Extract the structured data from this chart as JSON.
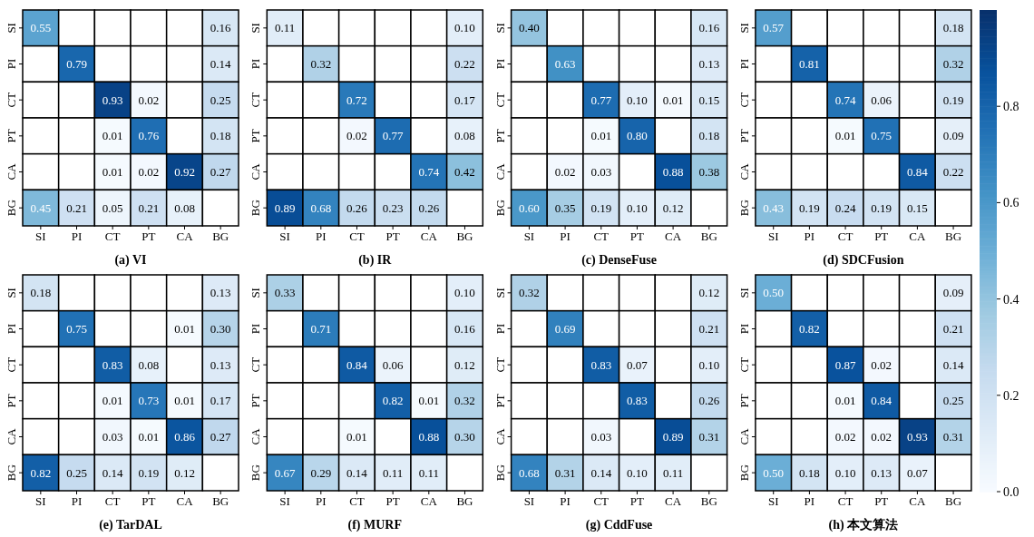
{
  "chart_data": [
    {
      "type": "heatmap",
      "title": "(a) VI",
      "categories": [
        "SI",
        "PI",
        "CT",
        "PT",
        "CA",
        "BG"
      ],
      "y_categories": [
        "SI",
        "PI",
        "CT",
        "PT",
        "CA",
        "BG"
      ],
      "clim": [
        0,
        1
      ],
      "cticks": [
        {
          "value": 0,
          "label": "0.0"
        },
        0.2,
        0.4,
        0.6,
        0.8
      ],
      "cells": [
        [
          0.55,
          null,
          null,
          null,
          null,
          0.16
        ],
        [
          null,
          0.79,
          null,
          null,
          null,
          0.14
        ],
        [
          null,
          null,
          0.93,
          0.02,
          null,
          0.25
        ],
        [
          null,
          null,
          0.01,
          0.76,
          null,
          0.18
        ],
        [
          null,
          null,
          0.01,
          0.02,
          0.92,
          0.27
        ],
        [
          0.45,
          0.21,
          0.05,
          0.21,
          0.08,
          null
        ]
      ],
      "cell_labels": [
        [
          "0.55",
          null,
          null,
          null,
          null,
          "0.16"
        ],
        [
          null,
          "0.79",
          null,
          null,
          null,
          "0.14"
        ],
        [
          null,
          null,
          "0.93",
          "0.02",
          null,
          "0.25"
        ],
        [
          null,
          null,
          "0.01",
          "0.76",
          null,
          "0.18"
        ],
        [
          null,
          null,
          "0.01",
          "0.02",
          "0.92",
          "0.27"
        ],
        [
          "0.45",
          "0.21",
          "0.05",
          "0.21",
          "0.08",
          null
        ]
      ]
    },
    {
      "type": "heatmap",
      "title": "(b) IR",
      "categories": [
        "SI",
        "PI",
        "CT",
        "PT",
        "CA",
        "BG"
      ],
      "y_categories": [
        "SI",
        "PI",
        "CT",
        "PT",
        "CA",
        "BG"
      ],
      "cells": [
        [
          0.11,
          null,
          null,
          null,
          null,
          0.1
        ],
        [
          null,
          0.32,
          null,
          null,
          null,
          0.22
        ],
        [
          null,
          null,
          0.72,
          null,
          null,
          0.17
        ],
        [
          null,
          null,
          0.02,
          0.77,
          null,
          0.08
        ],
        [
          null,
          null,
          null,
          null,
          0.74,
          0.42
        ],
        [
          0.89,
          0.68,
          0.26,
          0.23,
          0.26,
          null
        ]
      ],
      "cell_labels": [
        [
          "0.11",
          null,
          null,
          null,
          null,
          "0.10"
        ],
        [
          null,
          "0.32",
          null,
          null,
          null,
          "0.22"
        ],
        [
          null,
          null,
          "0.72",
          null,
          null,
          "0.17"
        ],
        [
          null,
          null,
          "0.02",
          "0.77",
          null,
          "0.08"
        ],
        [
          null,
          null,
          null,
          null,
          "0.74",
          "0.42"
        ],
        [
          "0.89",
          "0.68",
          "0.26",
          "0.23",
          "0.26",
          null
        ]
      ]
    },
    {
      "type": "heatmap",
      "title": "(c) DenseFuse",
      "categories": [
        "SI",
        "PI",
        "CT",
        "PT",
        "CA",
        "BG"
      ],
      "y_categories": [
        "SI",
        "PI",
        "CT",
        "PT",
        "CA",
        "BG"
      ],
      "cells": [
        [
          0.4,
          null,
          null,
          null,
          null,
          0.16
        ],
        [
          null,
          0.63,
          null,
          null,
          null,
          0.13
        ],
        [
          null,
          null,
          0.77,
          0.1,
          0.01,
          0.15
        ],
        [
          null,
          null,
          0.01,
          0.8,
          null,
          0.18
        ],
        [
          null,
          0.02,
          0.03,
          null,
          0.88,
          0.38
        ],
        [
          0.6,
          0.35,
          0.19,
          0.1,
          0.12,
          null
        ]
      ],
      "cell_labels": [
        [
          "0.40",
          null,
          null,
          null,
          null,
          "0.16"
        ],
        [
          null,
          "0.63",
          null,
          null,
          null,
          "0.13"
        ],
        [
          null,
          null,
          "0.77",
          "0.10",
          "0.01",
          "0.15"
        ],
        [
          null,
          null,
          "0.01",
          "0.80",
          null,
          "0.18"
        ],
        [
          null,
          "0.02",
          "0.03",
          null,
          "0.88",
          "0.38"
        ],
        [
          "0.60",
          "0.35",
          "0.19",
          "0.10",
          "0.12",
          null
        ]
      ]
    },
    {
      "type": "heatmap",
      "title": "(d) SDCFusion",
      "categories": [
        "SI",
        "PI",
        "CT",
        "PT",
        "CA",
        "BG"
      ],
      "y_categories": [
        "SI",
        "PI",
        "CT",
        "PT",
        "CA",
        "BG"
      ],
      "cells": [
        [
          0.57,
          null,
          null,
          null,
          null,
          0.18
        ],
        [
          null,
          0.81,
          null,
          null,
          null,
          0.32
        ],
        [
          null,
          null,
          0.74,
          0.06,
          null,
          0.19
        ],
        [
          null,
          null,
          0.01,
          0.75,
          null,
          0.09
        ],
        [
          null,
          null,
          null,
          null,
          0.84,
          0.22
        ],
        [
          0.43,
          0.19,
          0.24,
          0.19,
          0.15,
          null
        ]
      ],
      "cell_labels": [
        [
          "0.57",
          null,
          null,
          null,
          null,
          "0.18"
        ],
        [
          null,
          "0.81",
          null,
          null,
          null,
          "0.32"
        ],
        [
          null,
          null,
          "0.74",
          "0.06",
          null,
          "0.19"
        ],
        [
          null,
          null,
          "0.01",
          "0.75",
          null,
          "0.09"
        ],
        [
          null,
          null,
          null,
          null,
          "0.84",
          "0.22"
        ],
        [
          "0.43",
          "0.19",
          "0.24",
          "0.19",
          "0.15",
          null
        ]
      ]
    },
    {
      "type": "heatmap",
      "title": "(e) TarDAL",
      "categories": [
        "SI",
        "PI",
        "CT",
        "PT",
        "CA",
        "BG"
      ],
      "y_categories": [
        "SI",
        "PI",
        "CT",
        "PT",
        "CA",
        "BG"
      ],
      "cells": [
        [
          0.18,
          null,
          null,
          null,
          null,
          0.13
        ],
        [
          null,
          0.75,
          null,
          null,
          0.01,
          0.3
        ],
        [
          null,
          null,
          0.83,
          0.08,
          null,
          0.13
        ],
        [
          null,
          null,
          0.01,
          0.73,
          0.01,
          0.17
        ],
        [
          null,
          null,
          0.03,
          0.01,
          0.86,
          0.27
        ],
        [
          0.82,
          0.25,
          0.14,
          0.19,
          0.12,
          null
        ]
      ],
      "cell_labels": [
        [
          "0.18",
          null,
          null,
          null,
          null,
          "0.13"
        ],
        [
          null,
          "0.75",
          null,
          null,
          "0.01",
          "0.30"
        ],
        [
          null,
          null,
          "0.83",
          "0.08",
          null,
          "0.13"
        ],
        [
          null,
          null,
          "0.01",
          "0.73",
          "0.01",
          "0.17"
        ],
        [
          null,
          null,
          "0.03",
          "0.01",
          "0.86",
          "0.27"
        ],
        [
          "0.82",
          "0.25",
          "0.14",
          "0.19",
          "0.12",
          null
        ]
      ]
    },
    {
      "type": "heatmap",
      "title": "(f) MURF",
      "categories": [
        "SI",
        "PI",
        "CT",
        "PT",
        "CA",
        "BG"
      ],
      "y_categories": [
        "SI",
        "PI",
        "CT",
        "PT",
        "CA",
        "BG"
      ],
      "cells": [
        [
          0.33,
          null,
          null,
          null,
          null,
          0.1
        ],
        [
          null,
          0.71,
          null,
          null,
          null,
          0.16
        ],
        [
          null,
          null,
          0.84,
          0.06,
          null,
          0.12
        ],
        [
          null,
          null,
          null,
          0.82,
          0.01,
          0.32
        ],
        [
          null,
          null,
          0.01,
          null,
          0.88,
          0.3
        ],
        [
          0.67,
          0.29,
          0.14,
          0.11,
          0.11,
          null
        ]
      ],
      "cell_labels": [
        [
          "0.33",
          null,
          null,
          null,
          null,
          "0.10"
        ],
        [
          null,
          "0.71",
          null,
          null,
          null,
          "0.16"
        ],
        [
          null,
          null,
          "0.84",
          "0.06",
          null,
          "0.12"
        ],
        [
          null,
          null,
          null,
          "0.82",
          "0.01",
          "0.32"
        ],
        [
          null,
          null,
          "0.01",
          null,
          "0.88",
          "0.30"
        ],
        [
          "0.67",
          "0.29",
          "0.14",
          "0.11",
          "0.11",
          null
        ]
      ]
    },
    {
      "type": "heatmap",
      "title": "(g) CddFuse",
      "categories": [
        "SI",
        "PI",
        "CT",
        "PT",
        "CA",
        "BG"
      ],
      "y_categories": [
        "SI",
        "PI",
        "CT",
        "PT",
        "CA",
        "BG"
      ],
      "cells": [
        [
          0.32,
          null,
          null,
          null,
          null,
          0.12
        ],
        [
          null,
          0.69,
          null,
          null,
          null,
          0.21
        ],
        [
          null,
          null,
          0.83,
          0.07,
          null,
          0.1
        ],
        [
          null,
          null,
          null,
          0.83,
          null,
          0.26
        ],
        [
          null,
          null,
          0.03,
          null,
          0.89,
          0.31
        ],
        [
          0.68,
          0.31,
          0.14,
          0.1,
          0.11,
          null
        ]
      ],
      "cell_labels": [
        [
          "0.32",
          null,
          null,
          null,
          null,
          "0.12"
        ],
        [
          null,
          "0.69",
          null,
          null,
          null,
          "0.21"
        ],
        [
          null,
          null,
          "0.83",
          "0.07",
          null,
          "0.10"
        ],
        [
          null,
          null,
          null,
          "0.83",
          null,
          "0.26"
        ],
        [
          null,
          null,
          "0.03",
          null,
          "0.89",
          "0.31"
        ],
        [
          "0.68",
          "0.31",
          "0.14",
          "0.10",
          "0.11",
          null
        ]
      ]
    },
    {
      "type": "heatmap",
      "title": "(h) 本文算法",
      "categories": [
        "SI",
        "PI",
        "CT",
        "PT",
        "CA",
        "BG"
      ],
      "y_categories": [
        "SI",
        "PI",
        "CT",
        "PT",
        "CA",
        "BG"
      ],
      "cells": [
        [
          0.5,
          null,
          null,
          null,
          null,
          0.09
        ],
        [
          null,
          0.82,
          null,
          null,
          null,
          0.21
        ],
        [
          null,
          null,
          0.87,
          0.02,
          null,
          0.14
        ],
        [
          null,
          null,
          0.01,
          0.84,
          null,
          0.25
        ],
        [
          null,
          null,
          0.02,
          0.02,
          0.93,
          0.31
        ],
        [
          0.5,
          0.18,
          0.1,
          0.13,
          0.07,
          null
        ]
      ],
      "cell_labels": [
        [
          "0.50",
          null,
          null,
          null,
          null,
          "0.09"
        ],
        [
          null,
          "0.82",
          null,
          null,
          null,
          "0.21"
        ],
        [
          null,
          null,
          "0.87",
          "0.02",
          null,
          "0.14"
        ],
        [
          null,
          null,
          "0.01",
          "0.84",
          null,
          "0.25"
        ],
        [
          null,
          null,
          "0.02",
          "0.02",
          "0.93",
          "0.31"
        ],
        [
          "0.50",
          "0.18",
          "0.10",
          "0.13",
          "0.07",
          null
        ]
      ]
    }
  ]
}
